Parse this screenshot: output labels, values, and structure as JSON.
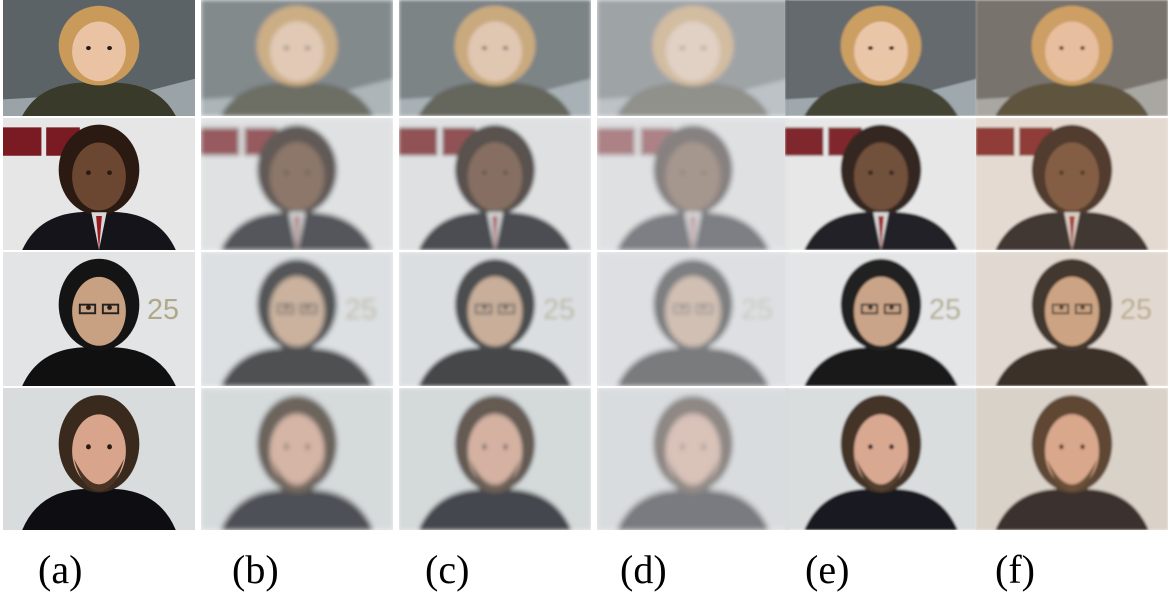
{
  "figure": {
    "column_labels": [
      "(a)",
      "(b)",
      "(c)",
      "(d)",
      "(e)",
      "(f)"
    ],
    "rows": [
      {
        "subject": "woman-blonde",
        "bg": "#9aa4a8",
        "hair": "#c99a5a",
        "skin": "#e9c3a4",
        "clothes": "#3a3a2a"
      },
      {
        "subject": "man-suit",
        "bg": "#e6e6e6",
        "hair": "#2a1a12",
        "skin": "#6b4630",
        "clothes": "#14141a"
      },
      {
        "subject": "man-glasses",
        "bg": "#e2e4e6",
        "hair": "#141414",
        "skin": "#c8a082",
        "clothes": "#101010"
      },
      {
        "subject": "man-beard",
        "bg": "#d8dcdc",
        "hair": "#3a2a1e",
        "skin": "#d8a48c",
        "clothes": "#0d0d12"
      }
    ],
    "column_styles": [
      {
        "blur": 0,
        "opacity": 1,
        "tint": ""
      },
      {
        "blur": 2.5,
        "opacity": 0.85,
        "tint": "#b9c4c8"
      },
      {
        "blur": 2.0,
        "opacity": 0.9,
        "tint": "#b9c4c8"
      },
      {
        "blur": 2.5,
        "opacity": 0.6,
        "tint": "#a8aeb4"
      },
      {
        "blur": 1.0,
        "opacity": 0.95,
        "tint": ""
      },
      {
        "blur": 1.2,
        "opacity": 1,
        "tint": "#e0b088"
      }
    ]
  }
}
